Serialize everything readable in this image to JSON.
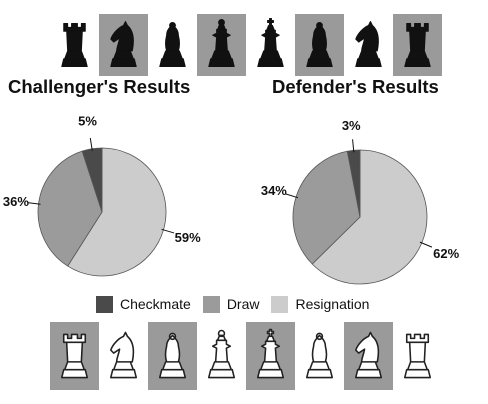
{
  "chart_data": [
    {
      "type": "pie",
      "title": "Challenger's Results",
      "labels": [
        "Checkmate",
        "Draw",
        "Resignation"
      ],
      "values": [
        5,
        36,
        59
      ],
      "data_labels": [
        "5%",
        "36%",
        "59%"
      ]
    },
    {
      "type": "pie",
      "title": "Defender's Results",
      "labels": [
        "Checkmate",
        "Draw",
        "Resignation"
      ],
      "values": [
        3,
        34,
        62
      ],
      "data_labels": [
        "3%",
        "34%",
        "62%"
      ]
    }
  ],
  "legend": {
    "position": "bottom-center",
    "items": [
      {
        "label": "Checkmate",
        "color": "#4a4a4a"
      },
      {
        "label": "Draw",
        "color": "#9b9b9b"
      },
      {
        "label": "Resignation",
        "color": "#cccccc"
      }
    ]
  },
  "colors": {
    "checkmate": "#4a4a4a",
    "draw": "#9b9b9b",
    "resignation": "#cccccc",
    "band": "#8c8c8c"
  },
  "decorations": {
    "top_row": [
      "rook-icon",
      "knight-icon",
      "bishop-icon",
      "queen-icon",
      "king-icon",
      "bishop-icon",
      "knight-icon",
      "rook-icon"
    ],
    "bottom_row": [
      "rook-icon",
      "knight-icon",
      "bishop-icon",
      "queen-icon",
      "king-icon",
      "bishop-icon",
      "knight-icon",
      "rook-icon"
    ]
  }
}
